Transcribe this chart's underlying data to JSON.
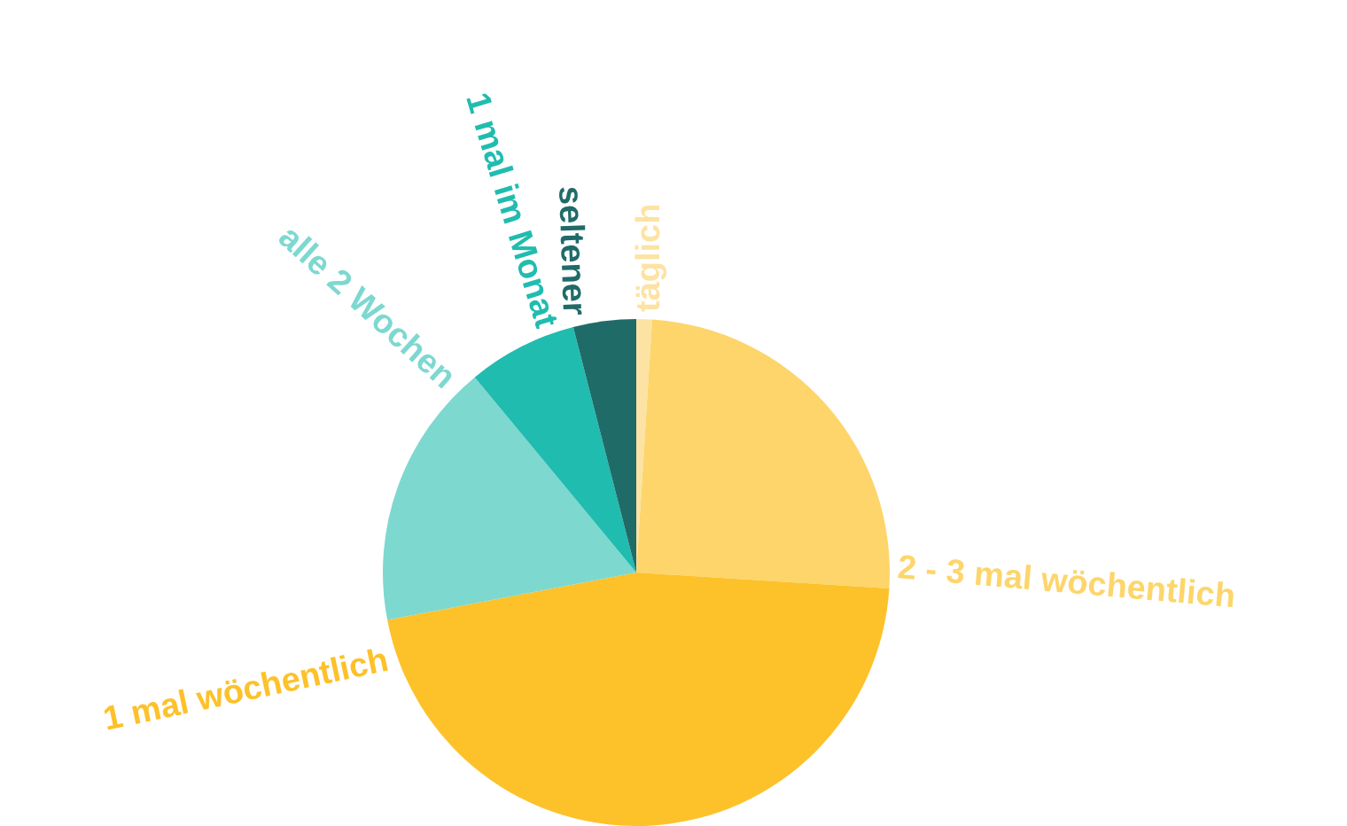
{
  "chart_data": {
    "type": "pie",
    "categories": [
      "täglich",
      "2 - 3 mal wöchentlich",
      "1 mal wöchentlich",
      "alle 2 Wochen",
      "1 mal im Monat",
      "seltener"
    ],
    "values": [
      1,
      25,
      46,
      17,
      7,
      4
    ],
    "colors": [
      "#fde3a3",
      "#fdd56b",
      "#fdc12a",
      "#7dd8d0",
      "#20bcaf",
      "#1f6b68"
    ]
  }
}
